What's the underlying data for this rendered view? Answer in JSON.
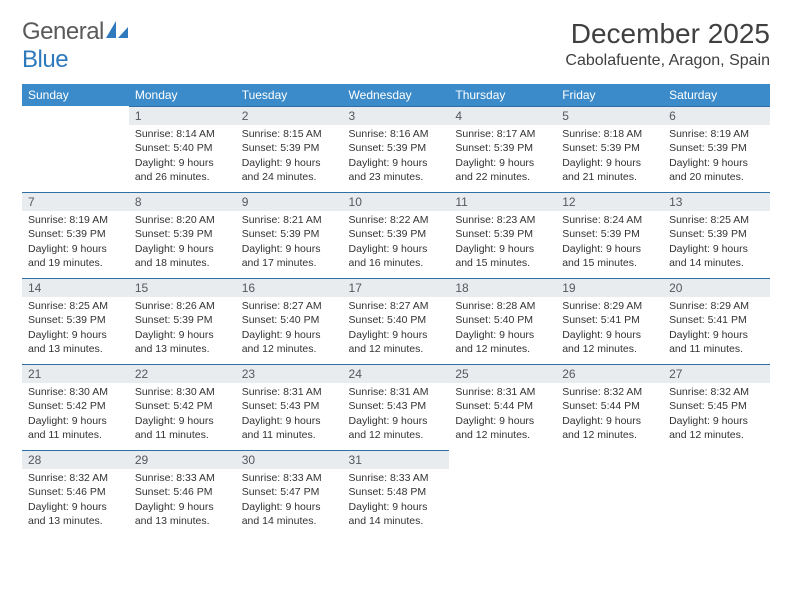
{
  "brand": {
    "part1": "General",
    "part2": "Blue"
  },
  "title": "December 2025",
  "location": "Cabolafuente, Aragon, Spain",
  "colors": {
    "header_bg": "#3b8bca",
    "header_text": "#ffffff",
    "daynum_bg": "#e9ecef",
    "daynum_border": "#2f6fa8",
    "text": "#333333",
    "logo_accent": "#2f79bd"
  },
  "weekdays": [
    "Sunday",
    "Monday",
    "Tuesday",
    "Wednesday",
    "Thursday",
    "Friday",
    "Saturday"
  ],
  "weeks": [
    [
      null,
      {
        "n": "1",
        "sr": "Sunrise: 8:14 AM",
        "ss": "Sunset: 5:40 PM",
        "d1": "Daylight: 9 hours",
        "d2": "and 26 minutes."
      },
      {
        "n": "2",
        "sr": "Sunrise: 8:15 AM",
        "ss": "Sunset: 5:39 PM",
        "d1": "Daylight: 9 hours",
        "d2": "and 24 minutes."
      },
      {
        "n": "3",
        "sr": "Sunrise: 8:16 AM",
        "ss": "Sunset: 5:39 PM",
        "d1": "Daylight: 9 hours",
        "d2": "and 23 minutes."
      },
      {
        "n": "4",
        "sr": "Sunrise: 8:17 AM",
        "ss": "Sunset: 5:39 PM",
        "d1": "Daylight: 9 hours",
        "d2": "and 22 minutes."
      },
      {
        "n": "5",
        "sr": "Sunrise: 8:18 AM",
        "ss": "Sunset: 5:39 PM",
        "d1": "Daylight: 9 hours",
        "d2": "and 21 minutes."
      },
      {
        "n": "6",
        "sr": "Sunrise: 8:19 AM",
        "ss": "Sunset: 5:39 PM",
        "d1": "Daylight: 9 hours",
        "d2": "and 20 minutes."
      }
    ],
    [
      {
        "n": "7",
        "sr": "Sunrise: 8:19 AM",
        "ss": "Sunset: 5:39 PM",
        "d1": "Daylight: 9 hours",
        "d2": "and 19 minutes."
      },
      {
        "n": "8",
        "sr": "Sunrise: 8:20 AM",
        "ss": "Sunset: 5:39 PM",
        "d1": "Daylight: 9 hours",
        "d2": "and 18 minutes."
      },
      {
        "n": "9",
        "sr": "Sunrise: 8:21 AM",
        "ss": "Sunset: 5:39 PM",
        "d1": "Daylight: 9 hours",
        "d2": "and 17 minutes."
      },
      {
        "n": "10",
        "sr": "Sunrise: 8:22 AM",
        "ss": "Sunset: 5:39 PM",
        "d1": "Daylight: 9 hours",
        "d2": "and 16 minutes."
      },
      {
        "n": "11",
        "sr": "Sunrise: 8:23 AM",
        "ss": "Sunset: 5:39 PM",
        "d1": "Daylight: 9 hours",
        "d2": "and 15 minutes."
      },
      {
        "n": "12",
        "sr": "Sunrise: 8:24 AM",
        "ss": "Sunset: 5:39 PM",
        "d1": "Daylight: 9 hours",
        "d2": "and 15 minutes."
      },
      {
        "n": "13",
        "sr": "Sunrise: 8:25 AM",
        "ss": "Sunset: 5:39 PM",
        "d1": "Daylight: 9 hours",
        "d2": "and 14 minutes."
      }
    ],
    [
      {
        "n": "14",
        "sr": "Sunrise: 8:25 AM",
        "ss": "Sunset: 5:39 PM",
        "d1": "Daylight: 9 hours",
        "d2": "and 13 minutes."
      },
      {
        "n": "15",
        "sr": "Sunrise: 8:26 AM",
        "ss": "Sunset: 5:39 PM",
        "d1": "Daylight: 9 hours",
        "d2": "and 13 minutes."
      },
      {
        "n": "16",
        "sr": "Sunrise: 8:27 AM",
        "ss": "Sunset: 5:40 PM",
        "d1": "Daylight: 9 hours",
        "d2": "and 12 minutes."
      },
      {
        "n": "17",
        "sr": "Sunrise: 8:27 AM",
        "ss": "Sunset: 5:40 PM",
        "d1": "Daylight: 9 hours",
        "d2": "and 12 minutes."
      },
      {
        "n": "18",
        "sr": "Sunrise: 8:28 AM",
        "ss": "Sunset: 5:40 PM",
        "d1": "Daylight: 9 hours",
        "d2": "and 12 minutes."
      },
      {
        "n": "19",
        "sr": "Sunrise: 8:29 AM",
        "ss": "Sunset: 5:41 PM",
        "d1": "Daylight: 9 hours",
        "d2": "and 12 minutes."
      },
      {
        "n": "20",
        "sr": "Sunrise: 8:29 AM",
        "ss": "Sunset: 5:41 PM",
        "d1": "Daylight: 9 hours",
        "d2": "and 11 minutes."
      }
    ],
    [
      {
        "n": "21",
        "sr": "Sunrise: 8:30 AM",
        "ss": "Sunset: 5:42 PM",
        "d1": "Daylight: 9 hours",
        "d2": "and 11 minutes."
      },
      {
        "n": "22",
        "sr": "Sunrise: 8:30 AM",
        "ss": "Sunset: 5:42 PM",
        "d1": "Daylight: 9 hours",
        "d2": "and 11 minutes."
      },
      {
        "n": "23",
        "sr": "Sunrise: 8:31 AM",
        "ss": "Sunset: 5:43 PM",
        "d1": "Daylight: 9 hours",
        "d2": "and 11 minutes."
      },
      {
        "n": "24",
        "sr": "Sunrise: 8:31 AM",
        "ss": "Sunset: 5:43 PM",
        "d1": "Daylight: 9 hours",
        "d2": "and 12 minutes."
      },
      {
        "n": "25",
        "sr": "Sunrise: 8:31 AM",
        "ss": "Sunset: 5:44 PM",
        "d1": "Daylight: 9 hours",
        "d2": "and 12 minutes."
      },
      {
        "n": "26",
        "sr": "Sunrise: 8:32 AM",
        "ss": "Sunset: 5:44 PM",
        "d1": "Daylight: 9 hours",
        "d2": "and 12 minutes."
      },
      {
        "n": "27",
        "sr": "Sunrise: 8:32 AM",
        "ss": "Sunset: 5:45 PM",
        "d1": "Daylight: 9 hours",
        "d2": "and 12 minutes."
      }
    ],
    [
      {
        "n": "28",
        "sr": "Sunrise: 8:32 AM",
        "ss": "Sunset: 5:46 PM",
        "d1": "Daylight: 9 hours",
        "d2": "and 13 minutes."
      },
      {
        "n": "29",
        "sr": "Sunrise: 8:33 AM",
        "ss": "Sunset: 5:46 PM",
        "d1": "Daylight: 9 hours",
        "d2": "and 13 minutes."
      },
      {
        "n": "30",
        "sr": "Sunrise: 8:33 AM",
        "ss": "Sunset: 5:47 PM",
        "d1": "Daylight: 9 hours",
        "d2": "and 14 minutes."
      },
      {
        "n": "31",
        "sr": "Sunrise: 8:33 AM",
        "ss": "Sunset: 5:48 PM",
        "d1": "Daylight: 9 hours",
        "d2": "and 14 minutes."
      },
      null,
      null,
      null
    ]
  ]
}
